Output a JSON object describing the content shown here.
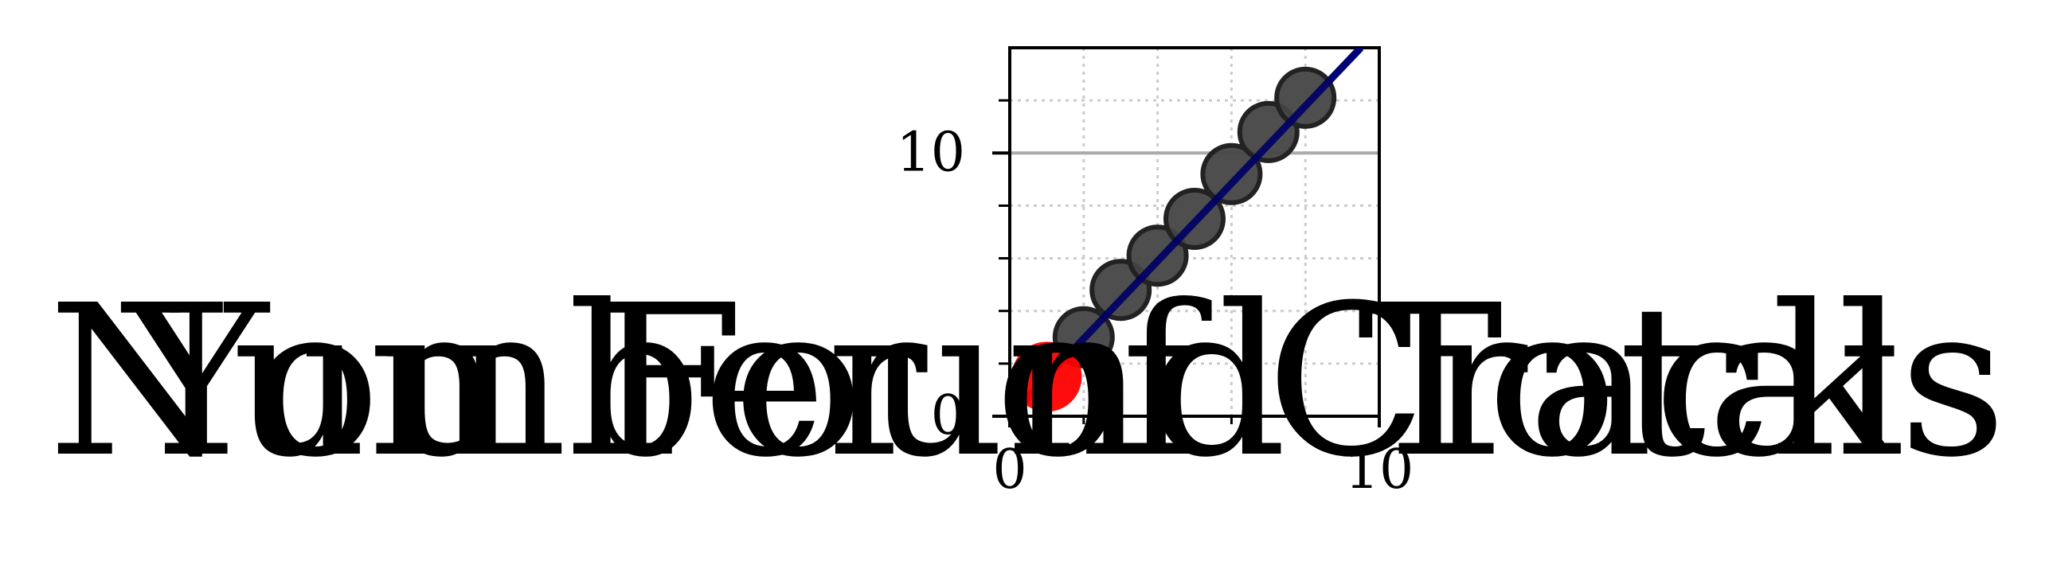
{
  "chart_data": {
    "type": "scatter",
    "overlay_labels": [
      "Number of Cracks",
      "You Found Total"
    ],
    "x_ticks": [
      0,
      10
    ],
    "y_ticks": [
      0,
      10
    ],
    "xlim": [
      0,
      10
    ],
    "ylim": [
      0,
      14
    ],
    "grid": true,
    "legend": "none",
    "series": [
      {
        "kind": "points",
        "color": "#444444",
        "x": [
          2,
          3,
          4,
          5,
          6,
          7,
          8
        ],
        "y": [
          3,
          4.8,
          6.1,
          7.5,
          9.2,
          10.8,
          12.1
        ]
      },
      {
        "kind": "line",
        "color": "#0000ff",
        "x": [
          0,
          9.5
        ],
        "y": [
          0,
          14
        ]
      },
      {
        "kind": "highlight",
        "color": "#ff0000",
        "x": [
          1
        ],
        "y": [
          1.5
        ]
      }
    ],
    "zero_line": {
      "y": 10,
      "color": "#aaaaaa"
    }
  }
}
